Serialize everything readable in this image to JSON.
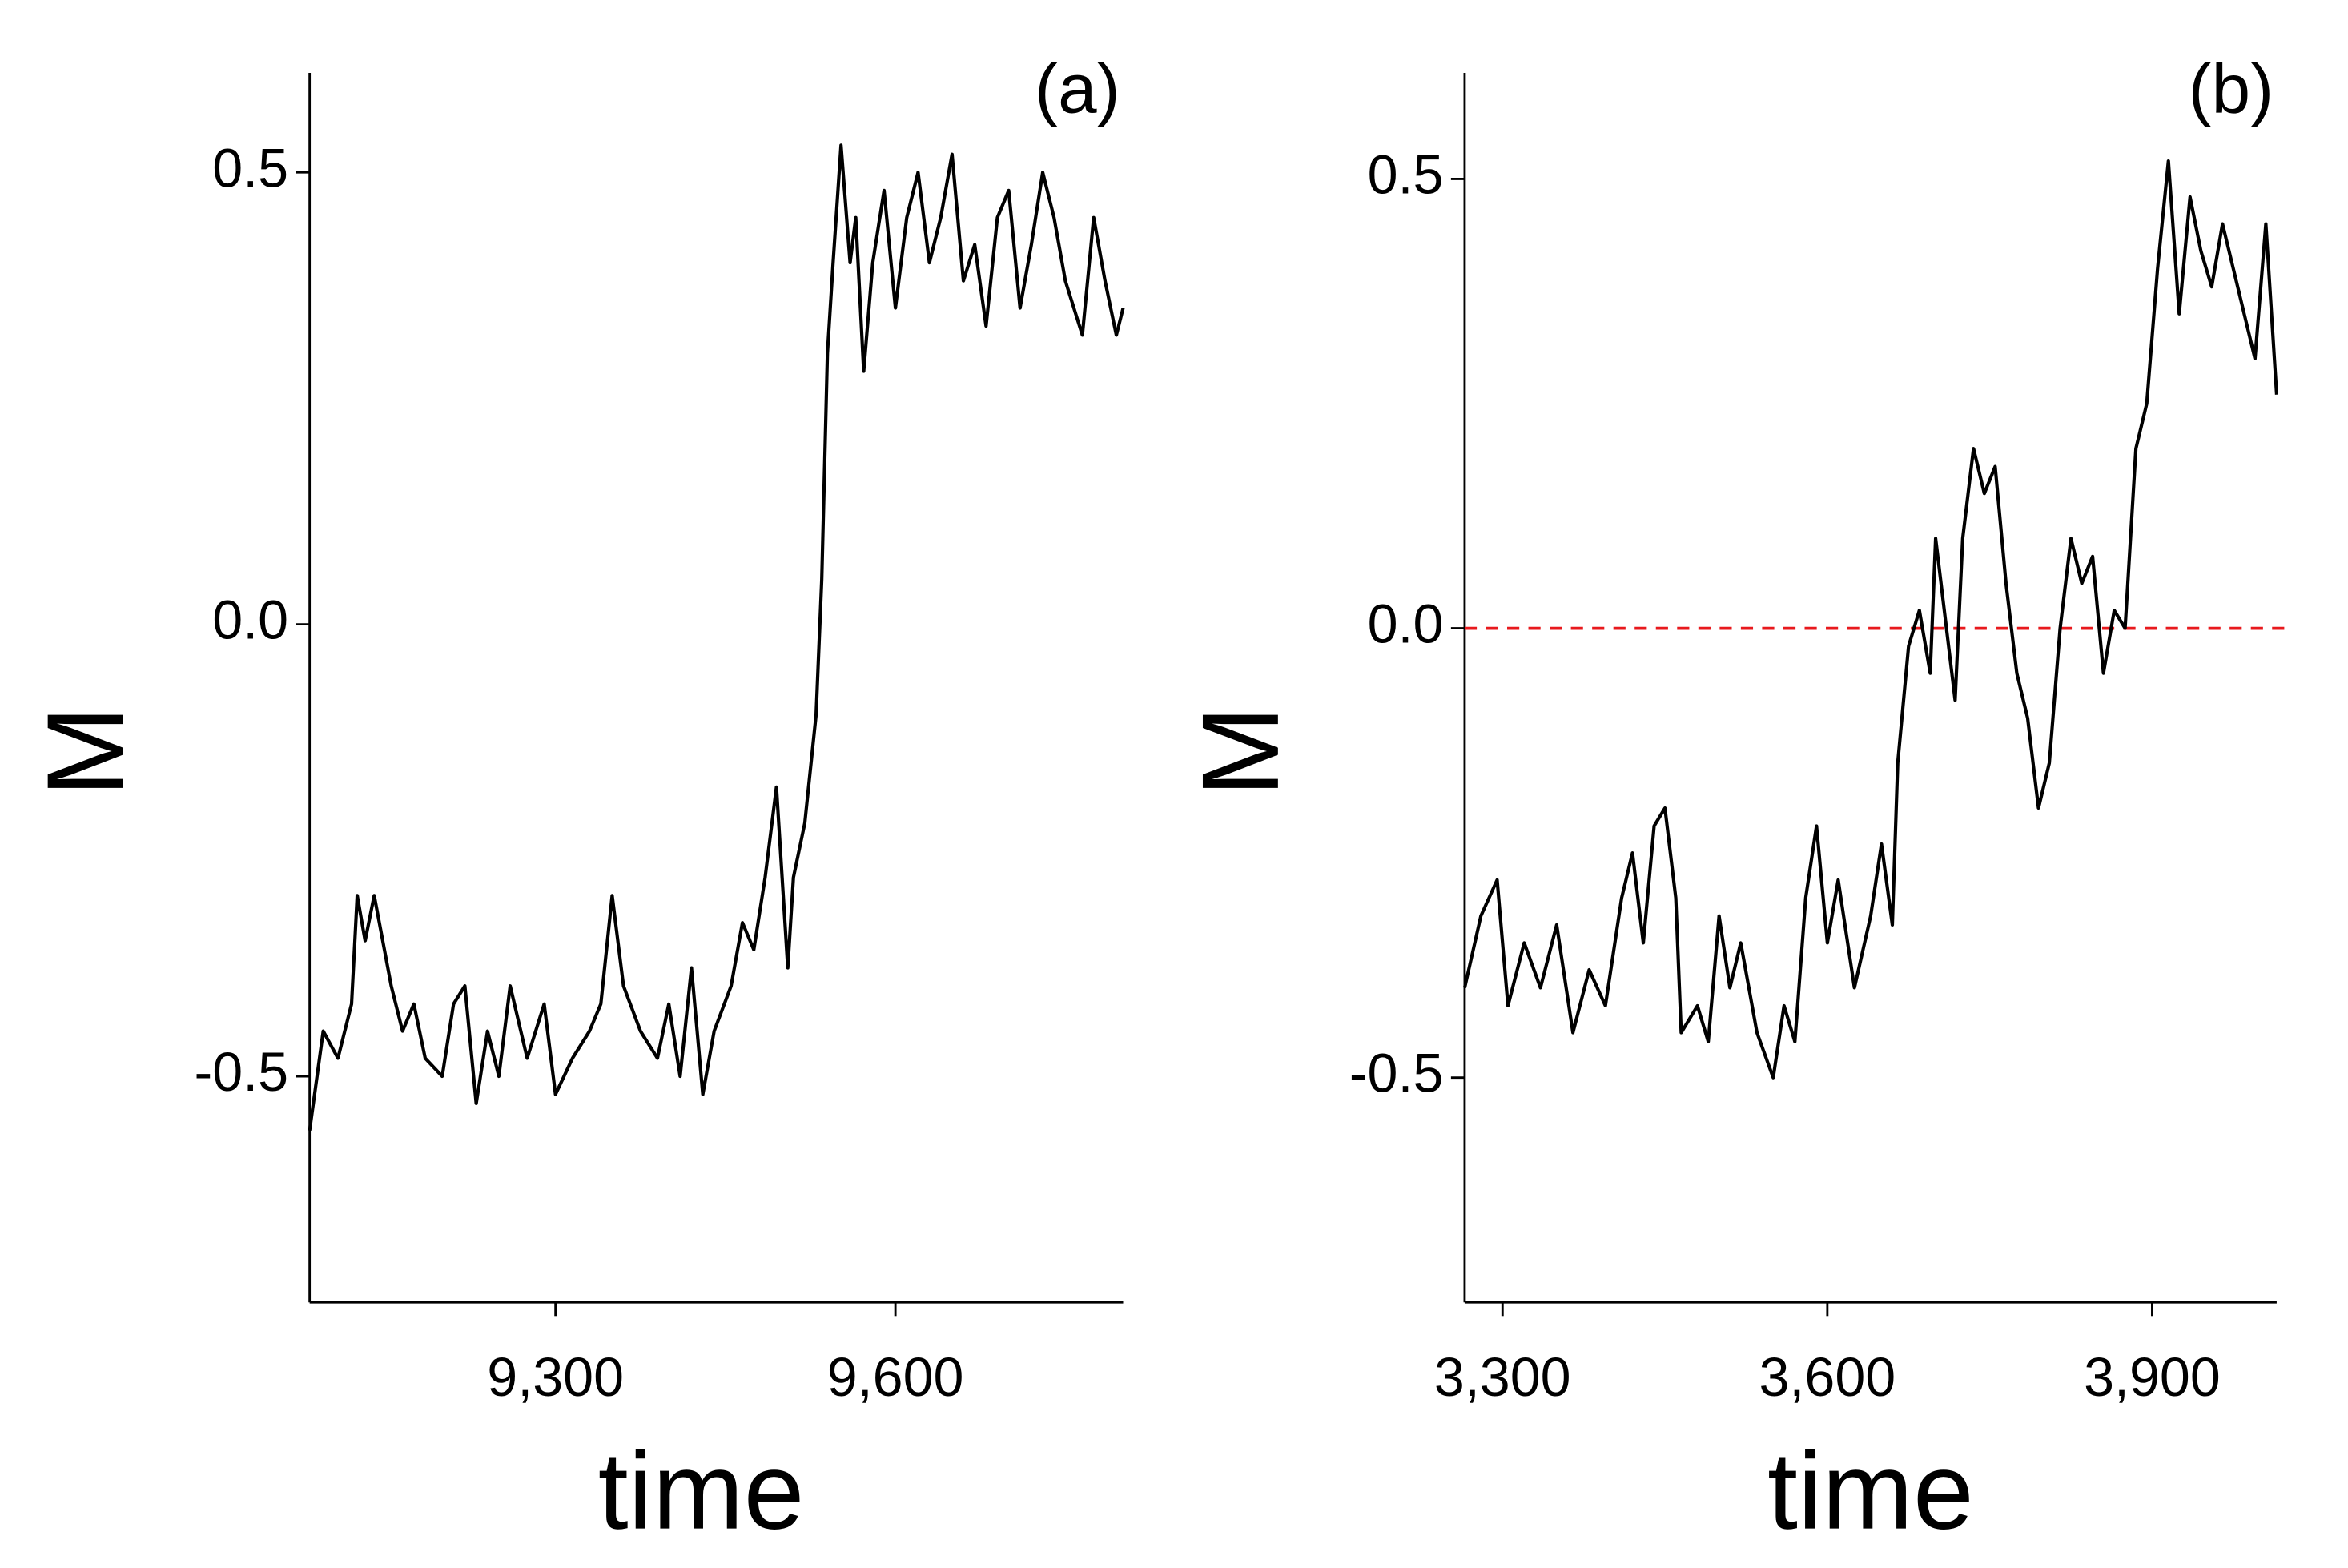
{
  "chart_data": [
    {
      "type": "line",
      "annotation": "(a)",
      "xlabel": "time",
      "ylabel": "M",
      "color": "#000000",
      "xlim": [
        9083,
        9801
      ],
      "ylim": [
        -0.75,
        0.61
      ],
      "xticks": [
        {
          "value": 9300,
          "label": "9,300"
        },
        {
          "value": 9600,
          "label": "9,600"
        }
      ],
      "yticks": [
        -0.5,
        {
          "value": 0,
          "label": "0.0"
        },
        0.5
      ],
      "x": [
        9083,
        9095,
        9108,
        9120,
        9125,
        9132,
        9140,
        9155,
        9165,
        9175,
        9185,
        9200,
        9210,
        9220,
        9230,
        9240,
        9250,
        9260,
        9275,
        9290,
        9300,
        9315,
        9330,
        9340,
        9350,
        9360,
        9375,
        9390,
        9400,
        9410,
        9420,
        9430,
        9440,
        9455,
        9465,
        9475,
        9485,
        9495,
        9500,
        9505,
        9510,
        9520,
        9530,
        9535,
        9540,
        9545,
        9552,
        9560,
        9565,
        9572,
        9580,
        9590,
        9600,
        9610,
        9620,
        9630,
        9640,
        9650,
        9660,
        9670,
        9680,
        9690,
        9700,
        9710,
        9720,
        9730,
        9740,
        9750,
        9765,
        9775,
        9785,
        9795,
        9801
      ],
      "values": [
        -0.56,
        -0.45,
        -0.48,
        -0.42,
        -0.3,
        -0.35,
        -0.3,
        -0.4,
        -0.45,
        -0.42,
        -0.48,
        -0.5,
        -0.42,
        -0.4,
        -0.53,
        -0.45,
        -0.5,
        -0.4,
        -0.48,
        -0.42,
        -0.52,
        -0.48,
        -0.45,
        -0.42,
        -0.3,
        -0.4,
        -0.45,
        -0.48,
        -0.42,
        -0.5,
        -0.38,
        -0.52,
        -0.45,
        -0.4,
        -0.33,
        -0.36,
        -0.28,
        -0.18,
        -0.28,
        -0.38,
        -0.28,
        -0.22,
        -0.1,
        0.05,
        0.3,
        0.4,
        0.53,
        0.4,
        0.45,
        0.28,
        0.4,
        0.48,
        0.35,
        0.45,
        0.5,
        0.4,
        0.45,
        0.52,
        0.38,
        0.42,
        0.33,
        0.45,
        0.48,
        0.35,
        0.42,
        0.5,
        0.45,
        0.38,
        0.32,
        0.45,
        0.38,
        0.32,
        0.35
      ]
    },
    {
      "type": "line",
      "annotation": "(b)",
      "xlabel": "time",
      "ylabel": "M",
      "color": "#000000",
      "hline": 0,
      "hline_color": "#e8191d",
      "xlim": [
        3265,
        4015
      ],
      "ylim": [
        -0.75,
        0.618
      ],
      "xticks": [
        {
          "value": 3300,
          "label": "3,300"
        },
        {
          "value": 3600,
          "label": "3,600"
        },
        {
          "value": 3900,
          "label": "3,900"
        }
      ],
      "yticks": [
        -0.5,
        {
          "value": 0,
          "label": "0.0"
        },
        0.5
      ],
      "x": [
        3265,
        3280,
        3295,
        3305,
        3320,
        3335,
        3350,
        3365,
        3380,
        3395,
        3410,
        3420,
        3430,
        3440,
        3450,
        3460,
        3465,
        3480,
        3490,
        3500,
        3510,
        3520,
        3535,
        3550,
        3560,
        3570,
        3580,
        3590,
        3600,
        3610,
        3625,
        3640,
        3650,
        3660,
        3665,
        3675,
        3685,
        3695,
        3700,
        3710,
        3718,
        3725,
        3735,
        3745,
        3755,
        3765,
        3775,
        3785,
        3795,
        3805,
        3815,
        3825,
        3835,
        3845,
        3855,
        3865,
        3875,
        3885,
        3895,
        3905,
        3915,
        3925,
        3935,
        3945,
        3955,
        3965,
        3975,
        3985,
        3995,
        4005,
        4015
      ],
      "values": [
        -0.4,
        -0.32,
        -0.28,
        -0.42,
        -0.35,
        -0.4,
        -0.33,
        -0.45,
        -0.38,
        -0.42,
        -0.3,
        -0.25,
        -0.35,
        -0.22,
        -0.2,
        -0.3,
        -0.45,
        -0.42,
        -0.46,
        -0.32,
        -0.4,
        -0.35,
        -0.45,
        -0.5,
        -0.42,
        -0.46,
        -0.3,
        -0.22,
        -0.35,
        -0.28,
        -0.4,
        -0.32,
        -0.24,
        -0.33,
        -0.15,
        -0.02,
        0.02,
        -0.05,
        0.1,
        0,
        -0.08,
        0.1,
        0.2,
        0.15,
        0.18,
        0.05,
        -0.05,
        -0.1,
        -0.2,
        -0.15,
        0,
        0.1,
        0.05,
        0.08,
        -0.05,
        0.02,
        0,
        0.2,
        0.25,
        0.4,
        0.52,
        0.35,
        0.48,
        0.42,
        0.38,
        0.45,
        0.4,
        0.35,
        0.3,
        0.45,
        0.26
      ]
    }
  ]
}
